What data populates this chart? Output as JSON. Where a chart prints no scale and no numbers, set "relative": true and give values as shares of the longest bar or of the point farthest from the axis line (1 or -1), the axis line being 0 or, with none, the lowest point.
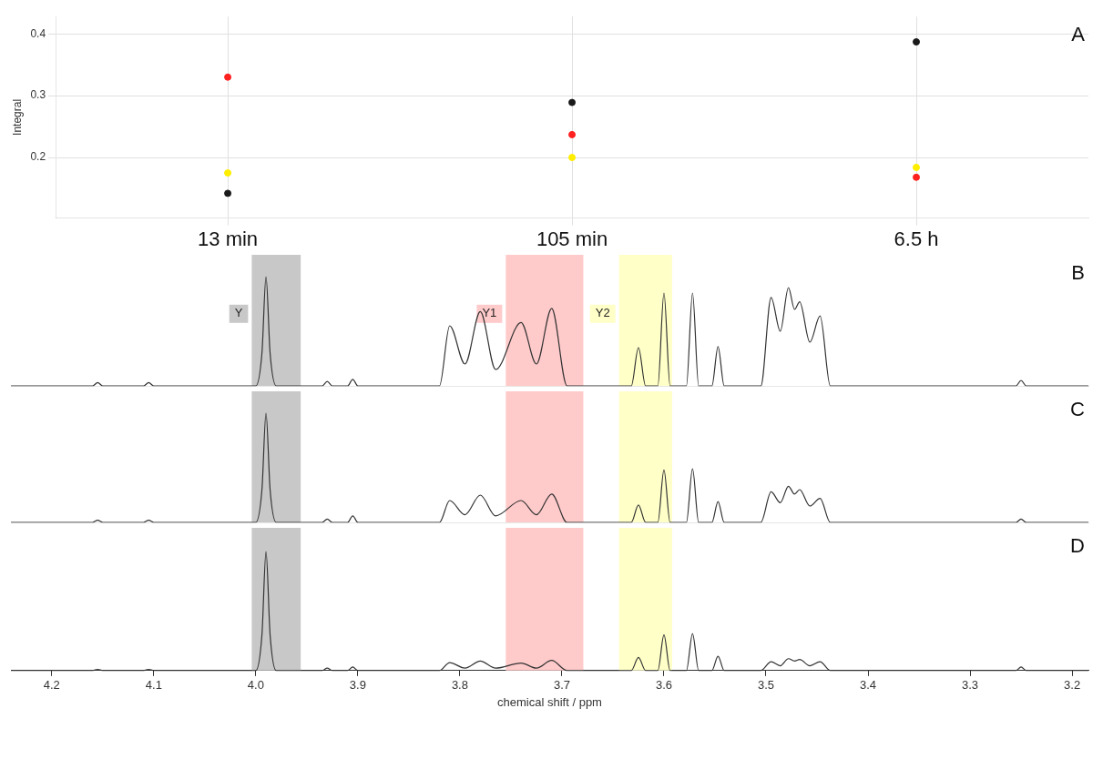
{
  "chart_data": [
    {
      "type": "scatter",
      "title": "A",
      "ylabel": "Integral",
      "categories": [
        "13 min",
        "105 min",
        "6.5 h"
      ],
      "ylim": [
        0.102,
        0.428
      ],
      "yticks": [
        0.2,
        0.3,
        0.4
      ],
      "grid": true,
      "marker": "circle",
      "series": [
        {
          "color": "#1a1a1a",
          "values": [
            0.142,
            0.289,
            0.387
          ]
        },
        {
          "color": "#ff2020",
          "values": [
            0.33,
            0.237,
            0.168
          ]
        },
        {
          "color": "#ffee00",
          "values": [
            0.175,
            0.2,
            0.184
          ]
        }
      ]
    },
    {
      "type": "line",
      "title": "B",
      "relative": true,
      "xlim": [
        4.24,
        3.184
      ],
      "tick_labels": false,
      "bands": [
        {
          "axis": "x",
          "from": 4.004,
          "to": 3.956,
          "label": "Y",
          "color": "#c8c8c8"
        },
        {
          "axis": "x",
          "from": 3.755,
          "to": 3.679,
          "label": "Y1",
          "color": "#ffcaca"
        },
        {
          "axis": "x",
          "from": 3.644,
          "to": 3.592,
          "label": "Y2",
          "color": "#ffffc8"
        }
      ],
      "series": [
        {
          "color": "#333333",
          "x": [
            4.24,
            4.16,
            4.155,
            4.15,
            4.11,
            4.105,
            4.1,
            4.0,
            3.994,
            3.99,
            3.986,
            3.98,
            3.935,
            3.93,
            3.925,
            3.91,
            3.905,
            3.9,
            3.82,
            3.81,
            3.795,
            3.78,
            3.765,
            3.74,
            3.725,
            3.71,
            3.695,
            3.632,
            3.625,
            3.618,
            3.606,
            3.6,
            3.594,
            3.578,
            3.572,
            3.566,
            3.553,
            3.547,
            3.541,
            3.505,
            3.495,
            3.486,
            3.478,
            3.472,
            3.467,
            3.457,
            3.447,
            3.437,
            3.255,
            3.25,
            3.245,
            3.184
          ],
          "values": [
            0,
            0,
            0.03,
            0,
            0,
            0.03,
            0,
            0,
            0.3,
            1,
            0.3,
            0,
            0,
            0.04,
            0,
            0,
            0.06,
            0,
            0,
            0.55,
            0.2,
            0.68,
            0.15,
            0.58,
            0.2,
            0.71,
            0,
            0,
            0.35,
            0,
            0,
            0.85,
            0,
            0,
            0.85,
            0,
            0,
            0.36,
            0,
            0,
            0.81,
            0.5,
            0.9,
            0.7,
            0.77,
            0.4,
            0.64,
            0,
            0,
            0.05,
            0,
            0
          ]
        }
      ]
    },
    {
      "type": "line",
      "title": "C",
      "relative": true,
      "xlim": [
        4.24,
        3.184
      ],
      "tick_labels": false,
      "bands": [
        {
          "axis": "x",
          "from": 4.004,
          "to": 3.956,
          "color": "#c8c8c8"
        },
        {
          "axis": "x",
          "from": 3.755,
          "to": 3.679,
          "color": "#ffcaca"
        },
        {
          "axis": "x",
          "from": 3.644,
          "to": 3.592,
          "color": "#ffffc8"
        }
      ],
      "series": [
        {
          "color": "#333333",
          "x": [
            4.24,
            4.16,
            4.155,
            4.15,
            4.11,
            4.105,
            4.1,
            4.0,
            3.994,
            3.99,
            3.986,
            3.98,
            3.935,
            3.93,
            3.925,
            3.91,
            3.905,
            3.9,
            3.82,
            3.81,
            3.795,
            3.78,
            3.765,
            3.74,
            3.725,
            3.71,
            3.695,
            3.632,
            3.625,
            3.618,
            3.606,
            3.6,
            3.594,
            3.578,
            3.572,
            3.566,
            3.553,
            3.547,
            3.541,
            3.505,
            3.495,
            3.486,
            3.478,
            3.472,
            3.467,
            3.457,
            3.447,
            3.437,
            3.255,
            3.25,
            3.245,
            3.184
          ],
          "values": [
            0,
            0,
            0.02,
            0,
            0,
            0.02,
            0,
            0,
            0.3,
            1,
            0.3,
            0,
            0,
            0.03,
            0,
            0,
            0.06,
            0,
            0,
            0.2,
            0.07,
            0.25,
            0.06,
            0.2,
            0.07,
            0.26,
            0,
            0,
            0.16,
            0,
            0,
            0.48,
            0,
            0,
            0.49,
            0,
            0,
            0.19,
            0,
            0,
            0.28,
            0.18,
            0.33,
            0.26,
            0.3,
            0.15,
            0.22,
            0,
            0,
            0.03,
            0,
            0
          ]
        }
      ]
    },
    {
      "type": "line",
      "title": "D",
      "relative": true,
      "xlim": [
        4.24,
        3.184
      ],
      "xticks": [
        4.2,
        4.1,
        {
          "value": 4.0,
          "label": "4.0"
        },
        3.9,
        3.8,
        3.7,
        3.6,
        3.5,
        3.4,
        3.3,
        3.2
      ],
      "xlabel": "chemical shift / ppm",
      "tick_labels": "x",
      "bands": [
        {
          "axis": "x",
          "from": 4.004,
          "to": 3.956,
          "color": "#c8c8c8"
        },
        {
          "axis": "x",
          "from": 3.755,
          "to": 3.679,
          "color": "#ffcaca"
        },
        {
          "axis": "x",
          "from": 3.644,
          "to": 3.592,
          "color": "#ffffc8"
        }
      ],
      "series": [
        {
          "color": "#333333",
          "x": [
            4.24,
            4.16,
            4.155,
            4.15,
            4.11,
            4.105,
            4.1,
            4.0,
            3.994,
            3.99,
            3.986,
            3.98,
            3.935,
            3.93,
            3.925,
            3.91,
            3.905,
            3.9,
            3.82,
            3.81,
            3.795,
            3.78,
            3.765,
            3.74,
            3.725,
            3.71,
            3.695,
            3.632,
            3.625,
            3.618,
            3.606,
            3.6,
            3.594,
            3.578,
            3.572,
            3.566,
            3.553,
            3.547,
            3.541,
            3.505,
            3.495,
            3.486,
            3.478,
            3.472,
            3.467,
            3.457,
            3.447,
            3.437,
            3.255,
            3.25,
            3.245,
            3.184
          ],
          "values": [
            0,
            0,
            0.01,
            0,
            0,
            0.01,
            0,
            0,
            0.3,
            1,
            0.3,
            0,
            0,
            0.02,
            0,
            0,
            0.03,
            0,
            0,
            0.067,
            0.02,
            0.08,
            0.02,
            0.063,
            0.02,
            0.085,
            0,
            0,
            0.11,
            0,
            0,
            0.3,
            0,
            0,
            0.31,
            0,
            0,
            0.12,
            0,
            0,
            0.074,
            0.04,
            0.1,
            0.08,
            0.093,
            0.04,
            0.074,
            0,
            0,
            0.03,
            0,
            0
          ]
        }
      ]
    }
  ]
}
